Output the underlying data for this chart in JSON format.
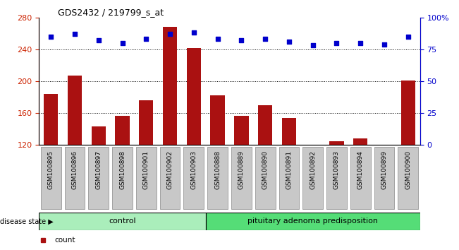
{
  "title": "GDS2432 / 219799_s_at",
  "samples": [
    "GSM100895",
    "GSM100896",
    "GSM100897",
    "GSM100898",
    "GSM100901",
    "GSM100902",
    "GSM100903",
    "GSM100888",
    "GSM100889",
    "GSM100890",
    "GSM100891",
    "GSM100892",
    "GSM100893",
    "GSM100894",
    "GSM100899",
    "GSM100900"
  ],
  "counts": [
    184,
    207,
    143,
    157,
    176,
    268,
    242,
    182,
    157,
    170,
    154,
    113,
    125,
    128,
    112,
    201
  ],
  "percentiles": [
    85,
    87,
    82,
    80,
    83,
    87,
    88,
    83,
    82,
    83,
    81,
    78,
    80,
    80,
    79,
    85
  ],
  "control_count": 7,
  "control_label": "control",
  "disease_label": "pituitary adenoma predisposition",
  "group_label": "disease state",
  "ylim_left": [
    120,
    280
  ],
  "ylim_right": [
    0,
    100
  ],
  "yticks_left": [
    120,
    160,
    200,
    240,
    280
  ],
  "yticks_right": [
    0,
    25,
    50,
    75,
    100
  ],
  "bar_color": "#AA1111",
  "dot_color": "#0000CC",
  "control_bg": "#AAEEBB",
  "disease_bg": "#55DD77",
  "tick_bg": "#C8C8C8",
  "grid_color": "#000000",
  "right_axis_color": "#0000CC",
  "left_axis_color": "#CC2200"
}
